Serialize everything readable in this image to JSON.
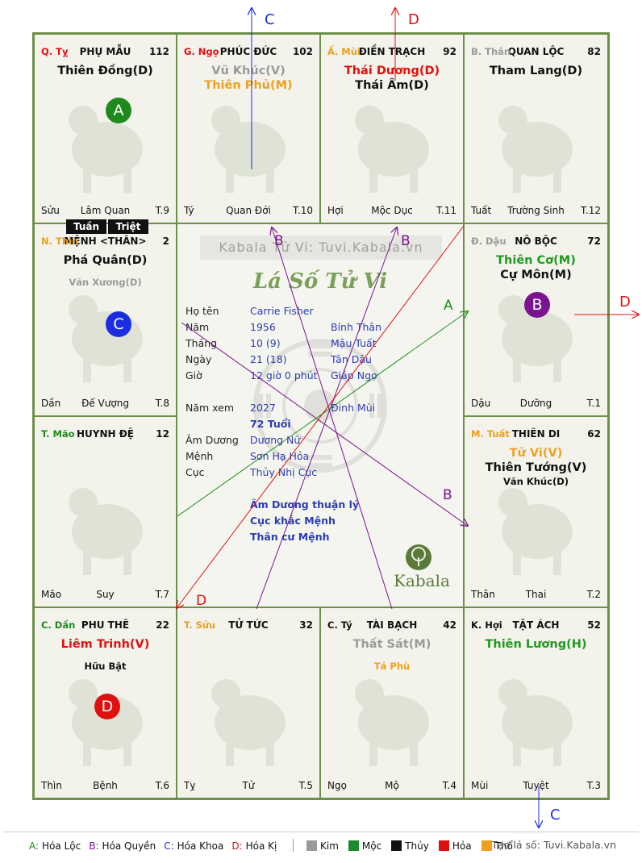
{
  "cells": [
    {
      "branch": "Q. Tỵ",
      "branch_color": "#e01010",
      "palace": "PHỤ MẪU",
      "score": "112",
      "stars": [
        {
          "text": "Thiên Đồng(D)",
          "color": "#111111",
          "cls": "main"
        }
      ],
      "footer": {
        "left": "Sửu",
        "mid": "Lâm Quan",
        "right": "T.9"
      },
      "circle": {
        "label": "A",
        "color": "#1e8a1e"
      }
    },
    {
      "branch": "G. Ngọ",
      "branch_color": "#e01010",
      "palace": "PHÚC ĐỨC",
      "score": "102",
      "stars": [
        {
          "text": "Vũ Khúc(V)",
          "color": "#9a9a9a",
          "cls": "main"
        },
        {
          "text": "Thiên Phủ(M)",
          "color": "#f0a020",
          "cls": "main"
        }
      ],
      "footer": {
        "left": "Tý",
        "mid": "Quan Đới",
        "right": "T.10"
      }
    },
    {
      "branch": "Ấ. Mùi",
      "branch_color": "#e8a020",
      "palace": "ĐIỀN TRẠCH",
      "score": "92",
      "stars": [
        {
          "text": "Thái Dương(D)",
          "color": "#e01010",
          "cls": "main"
        },
        {
          "text": "Thái Âm(D)",
          "color": "#111111",
          "cls": "main"
        }
      ],
      "footer": {
        "left": "Hợi",
        "mid": "Mộc Dục",
        "right": "T.11"
      }
    },
    {
      "branch": "B. Thân",
      "branch_color": "#9a9a9a",
      "palace": "QUAN LỘC",
      "score": "82",
      "stars": [
        {
          "text": "Tham Lang(D)",
          "color": "#111111",
          "cls": "main"
        }
      ],
      "footer": {
        "left": "Tuất",
        "mid": "Trường Sinh",
        "right": "T.12"
      }
    },
    {
      "branch": "N. Thìn",
      "branch_color": "#e8a020",
      "palace": "MỆNH <THÂN>",
      "score": "2",
      "stars": [
        {
          "text": "Phá Quân(D)",
          "color": "#111111",
          "cls": "main"
        },
        {
          "text": "",
          "color": "#111",
          "cls": "minor"
        },
        {
          "text": "Văn Xương(D)",
          "color": "#9a9a9a",
          "cls": "minor"
        }
      ],
      "footer": {
        "left": "Dần",
        "mid": "Đế Vượng",
        "right": "T.8"
      },
      "circle": {
        "label": "C",
        "color": "#1a2ee0"
      }
    },
    {
      "branch": "Đ. Dậu",
      "branch_color": "#9a9a9a",
      "palace": "NÔ BỘC",
      "score": "72",
      "stars": [
        {
          "text": "Thiên Cơ(M)",
          "color": "#1e9a1e",
          "cls": "main"
        },
        {
          "text": "Cự Môn(M)",
          "color": "#111111",
          "cls": "main"
        }
      ],
      "footer": {
        "left": "Dậu",
        "mid": "Dưỡng",
        "right": "T.1"
      },
      "circle": {
        "label": "B",
        "color": "#7a1490"
      }
    },
    {
      "branch": "T. Mão",
      "branch_color": "#1e8a1e",
      "palace": "HUYNH ĐỆ",
      "score": "12",
      "stars": [],
      "footer": {
        "left": "Mão",
        "mid": "Suy",
        "right": "T.7"
      }
    },
    {
      "branch": "M. Tuất",
      "branch_color": "#e8a020",
      "palace": "THIÊN DI",
      "score": "62",
      "stars": [
        {
          "text": "Tử Vi(V)",
          "color": "#f0a020",
          "cls": "main"
        },
        {
          "text": "Thiên Tướng(V)",
          "color": "#111111",
          "cls": "main"
        },
        {
          "text": "Văn Khúc(D)",
          "color": "#111111",
          "cls": "minor"
        }
      ],
      "footer": {
        "left": "Thân",
        "mid": "Thai",
        "right": "T.2"
      }
    },
    {
      "branch": "C. Dần",
      "branch_color": "#1e8a1e",
      "palace": "PHU THÊ",
      "score": "22",
      "stars": [
        {
          "text": "Liêm Trinh(V)",
          "color": "#e01010",
          "cls": "main"
        },
        {
          "text": "",
          "color": "#111",
          "cls": "minor"
        },
        {
          "text": "Hữu Bật",
          "color": "#111111",
          "cls": "minor"
        }
      ],
      "footer": {
        "left": "Thìn",
        "mid": "Bệnh",
        "right": "T.6"
      },
      "circle": {
        "label": "D",
        "color": "#e01010"
      }
    },
    {
      "branch": "T. Sửu",
      "branch_color": "#e8a020",
      "palace": "TỬ TỨC",
      "score": "32",
      "stars": [],
      "footer": {
        "left": "Tỵ",
        "mid": "Tử",
        "right": "T.5"
      }
    },
    {
      "branch": "C. Tý",
      "branch_color": "#111111",
      "palace": "TÀI BẠCH",
      "score": "42",
      "stars": [
        {
          "text": "Thất Sát(M)",
          "color": "#9a9a9a",
          "cls": "main"
        },
        {
          "text": "",
          "color": "#111",
          "cls": "minor"
        },
        {
          "text": "Tả Phù",
          "color": "#f0a020",
          "cls": "minor"
        }
      ],
      "footer": {
        "left": "Ngọ",
        "mid": "Mộ",
        "right": "T.4"
      }
    },
    {
      "branch": "K. Hợi",
      "branch_color": "#111111",
      "palace": "TẬT ÁCH",
      "score": "52",
      "stars": [
        {
          "text": "Thiên Lương(H)",
          "color": "#1e9a1e",
          "cls": "main"
        }
      ],
      "footer": {
        "left": "Mùi",
        "mid": "Tuyệt",
        "right": "T.3"
      }
    }
  ],
  "tags": {
    "tuan": "Tuần",
    "triet": "Triệt"
  },
  "center": {
    "watermark": "Kabala Tử Vi: Tuvi.Kabala.vn",
    "title": "Lá Số Tử Vi",
    "logo_text": "Kabala",
    "rows": [
      {
        "label": "Họ tên",
        "v1": "Carrie Fisher",
        "v2": ""
      },
      {
        "label": "Năm",
        "v1": "1956",
        "v2": "Bính Thân"
      },
      {
        "label": "Tháng",
        "v1": "10  (9)",
        "v2": "Mậu Tuất"
      },
      {
        "label": "Ngày",
        "v1": "21  (18)",
        "v2": "Tân Dậu"
      },
      {
        "label": "Giờ",
        "v1": "12 giờ 0 phút",
        "v2": "Giáp Ngọ"
      },
      {
        "label": "Năm xem",
        "v1": "2027",
        "v2": "Đinh Mùi"
      },
      {
        "label": "",
        "v1": "72 Tuổi",
        "v2": ""
      },
      {
        "label": "Âm Dương",
        "v1": "Dương Nữ",
        "v2": ""
      },
      {
        "label": "Mệnh",
        "v1": "Sơn Hạ Hỏa",
        "v2": ""
      },
      {
        "label": "Cục",
        "v1": "Thủy Nhị Cục",
        "v2": ""
      }
    ],
    "notes": [
      "Âm Dương thuận lý",
      "Cục khắc Mệnh",
      "Thân cư Mệnh"
    ]
  },
  "arrow_labels": {
    "top_c": "C",
    "top_d": "D",
    "right_d": "D",
    "bottom_c": "C",
    "inner_b1": "B",
    "inner_b2": "B",
    "inner_a": "A",
    "inner_b3": "B",
    "inner_d": "D"
  },
  "legend": {
    "transforms": [
      {
        "key": "A:",
        "label": "Hóa Lộc",
        "color": "#1e8a1e"
      },
      {
        "key": "B:",
        "label": "Hóa Quyền",
        "color": "#7a1490"
      },
      {
        "key": "C:",
        "label": "Hóa Khoa",
        "color": "#1a2ee0"
      },
      {
        "key": "D:",
        "label": "Hóa Kị",
        "color": "#e01010"
      }
    ],
    "elements": [
      {
        "label": "Kim",
        "color": "#9a9a9a"
      },
      {
        "label": "Mộc",
        "color": "#1e8a2e"
      },
      {
        "label": "Thủy",
        "color": "#111111"
      },
      {
        "label": "Hỏa",
        "color": "#e01010"
      },
      {
        "label": "Thổ",
        "color": "#f0a020"
      }
    ],
    "credit": "Tạo lá số: Tuvi.Kabala.vn"
  }
}
